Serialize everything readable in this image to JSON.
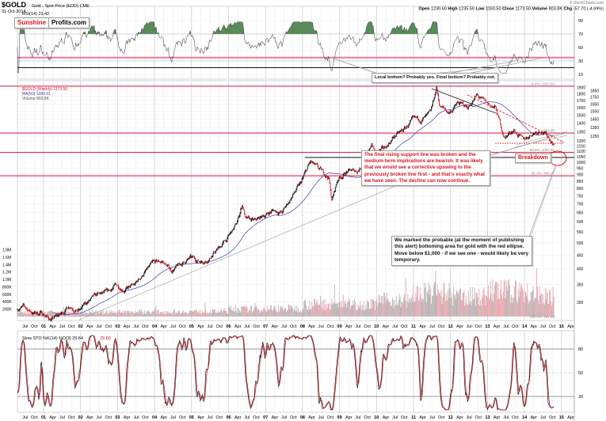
{
  "header": {
    "symbol": "$GOLD",
    "description": "Gold - Spot Price (EOD) CME",
    "date": "31-Oct-2014",
    "watermark": "© StockCharts.com",
    "stats": [
      {
        "label": "Open",
        "value": "1230.60"
      },
      {
        "label": "High",
        "value": "1235.50"
      },
      {
        "label": "Low",
        "value": "1160.50"
      },
      {
        "label": "Close",
        "value": "1173.50"
      },
      {
        "label": "Volume",
        "value": "803.8K"
      },
      {
        "label": "Chg",
        "value": "-57.70 (-4.69%)"
      }
    ]
  },
  "logo": {
    "part1": "Sunshine",
    "part2": "Profits.com"
  },
  "rsi_panel": {
    "legend": "RSI(14) 23.42",
    "ticks": [
      90,
      70,
      50,
      30,
      10
    ],
    "overbought": 70,
    "oversold": 30,
    "support_pink": 35,
    "support_black": 20
  },
  "main_panel": {
    "legend_price": "$GOLD (Weekly) 1173.50",
    "legend_ma": "MA(50) 1282.01",
    "legend_volume": "Volume 803.8K",
    "price_ticks": [
      300,
      350,
      400,
      450,
      500,
      550,
      600,
      650,
      700,
      750,
      800,
      850,
      900,
      950,
      1000,
      1050,
      1100,
      1150,
      1200,
      1250,
      1300,
      1350,
      1400,
      1450,
      1500,
      1550,
      1600,
      1650,
      1700,
      1750,
      1800,
      1850,
      1900
    ],
    "volume_ticks": [
      "200K",
      "400K",
      "600K",
      "800K",
      "1.0M",
      "1.2M",
      "1.4M",
      "1.6M",
      "1.8M"
    ],
    "fib_levels": [
      {
        "label": "0.0%: 1923.54",
        "value": 1923.54
      },
      {
        "label": "1284.85",
        "value": 1284.85
      },
      {
        "label": "50.0%: 1087.56",
        "value": 1087.56
      },
      {
        "label": "61.8%: 890.27",
        "value": 890.27
      },
      {
        "label": "100.0%: 251.59",
        "value": 251.59
      }
    ],
    "colors": {
      "up": "#111111",
      "down": "#d8141e",
      "ma": "#3a3aa8",
      "fib": "#d8143c",
      "volume_up": "#b0b0b0",
      "volume_down": "#e8a0a8"
    }
  },
  "annotations": {
    "rsi_callout": "Local bottom? Probably yes. Final bottom? Probably not.",
    "main_callout": "The final rising support line was broken and the medium-term implications are bearish. It was likely that we would see a corrective upswing to the previously broken line first - and that's exactly what we have seen. The decline can now continue.",
    "breakdown": "Breakdown",
    "ellipse_callout": "We marked the probable (at the moment of publishing this alert) bottoming area for gold with the red ellipse. Move below $1,000 - if we see one - would likely be very temporary."
  },
  "sto_panel": {
    "legend": "Slow STO %K(14) %D(3) 25.64",
    "legend_d": "25.60",
    "ticks": [
      80,
      50,
      20
    ]
  },
  "x_labels": [
    "Jul",
    "Oct",
    "01",
    "Apr",
    "Jul",
    "Oct",
    "02",
    "Apr",
    "Jul",
    "Oct",
    "03",
    "Apr",
    "Jul",
    "Oct",
    "04",
    "Apr",
    "Jul",
    "Oct",
    "05",
    "Apr",
    "Jul",
    "Oct",
    "06",
    "Apr",
    "Jul",
    "Oct",
    "07",
    "Apr",
    "Jul",
    "Oct",
    "08",
    "Apr",
    "Jul",
    "Oct",
    "09",
    "Apr",
    "Jul",
    "Oct",
    "10",
    "Apr",
    "Jul",
    "Oct",
    "11",
    "Apr",
    "Jul",
    "Oct",
    "12",
    "Apr",
    "Jul",
    "Oct",
    "13",
    "Apr",
    "Jul",
    "Oct",
    "14",
    "Apr",
    "Jul",
    "Oct",
    "15",
    "Apr"
  ],
  "chart_data": {
    "type": "line",
    "scale": "log",
    "ylim": [
      250,
      1990
    ],
    "x": [
      "2000-04",
      "2000-06",
      "2000-09",
      "2000-12",
      "2001-03",
      "2001-06",
      "2001-09",
      "2001-12",
      "2002-03",
      "2002-06",
      "2002-09",
      "2002-12",
      "2003-03",
      "2003-06",
      "2003-09",
      "2003-12",
      "2004-03",
      "2004-06",
      "2004-09",
      "2004-12",
      "2005-03",
      "2005-06",
      "2005-09",
      "2005-12",
      "2006-03",
      "2006-05",
      "2006-06",
      "2006-09",
      "2006-12",
      "2007-03",
      "2007-06",
      "2007-09",
      "2007-12",
      "2008-03",
      "2008-06",
      "2008-09",
      "2008-10",
      "2008-12",
      "2009-03",
      "2009-06",
      "2009-09",
      "2009-11",
      "2009-12",
      "2010-03",
      "2010-06",
      "2010-09",
      "2010-12",
      "2011-03",
      "2011-06",
      "2011-08",
      "2011-09",
      "2011-12",
      "2012-03",
      "2012-06",
      "2012-09",
      "2012-12",
      "2013-03",
      "2013-06",
      "2013-09",
      "2013-12",
      "2014-03",
      "2014-06",
      "2014-09",
      "2014-10"
    ],
    "series": [
      {
        "name": "$GOLD (Weekly)",
        "values": [
          285,
          288,
          274,
          273,
          258,
          270,
          293,
          279,
          302,
          318,
          324,
          347,
          336,
          346,
          385,
          417,
          426,
          394,
          415,
          438,
          428,
          435,
          472,
          517,
          582,
          700,
          613,
          599,
          632,
          662,
          650,
          743,
          834,
          1000,
          930,
          880,
          720,
          869,
          924,
          926,
          1001,
          1180,
          1087,
          1113,
          1244,
          1307,
          1421,
          1439,
          1500,
          1900,
          1620,
          1531,
          1662,
          1598,
          1772,
          1657,
          1595,
          1235,
          1326,
          1202,
          1284,
          1327,
          1210,
          1173
        ]
      }
    ],
    "volume_by_year": {
      "years": [
        2000,
        2001,
        2002,
        2003,
        2004,
        2005,
        2006,
        2007,
        2008,
        2009,
        2010,
        2011,
        2012,
        2013,
        2014
      ],
      "avg_k": [
        110,
        110,
        120,
        130,
        130,
        140,
        200,
        220,
        330,
        330,
        430,
        620,
        540,
        680,
        560
      ]
    }
  }
}
